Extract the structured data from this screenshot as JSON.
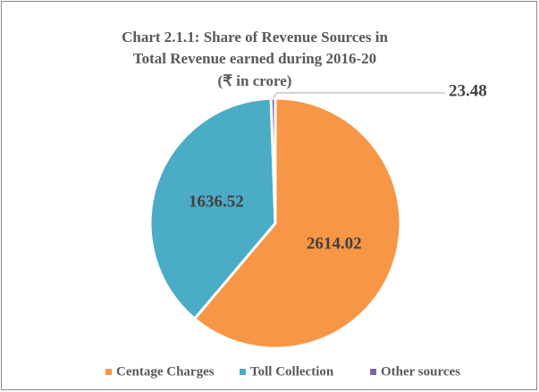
{
  "chart_data": {
    "type": "pie",
    "title": [
      "Chart 2.1.1: Share of Revenue Sources in",
      "Total Revenue earned during 2016-20",
      "(₹ in crore)"
    ],
    "categories": [
      "Centage Charges",
      "Toll Collection",
      "Other sources"
    ],
    "values": [
      2614.02,
      1636.52,
      23.48
    ],
    "colors": [
      "#F79646",
      "#4BACC6",
      "#8064A2"
    ],
    "legend": "bottom"
  }
}
